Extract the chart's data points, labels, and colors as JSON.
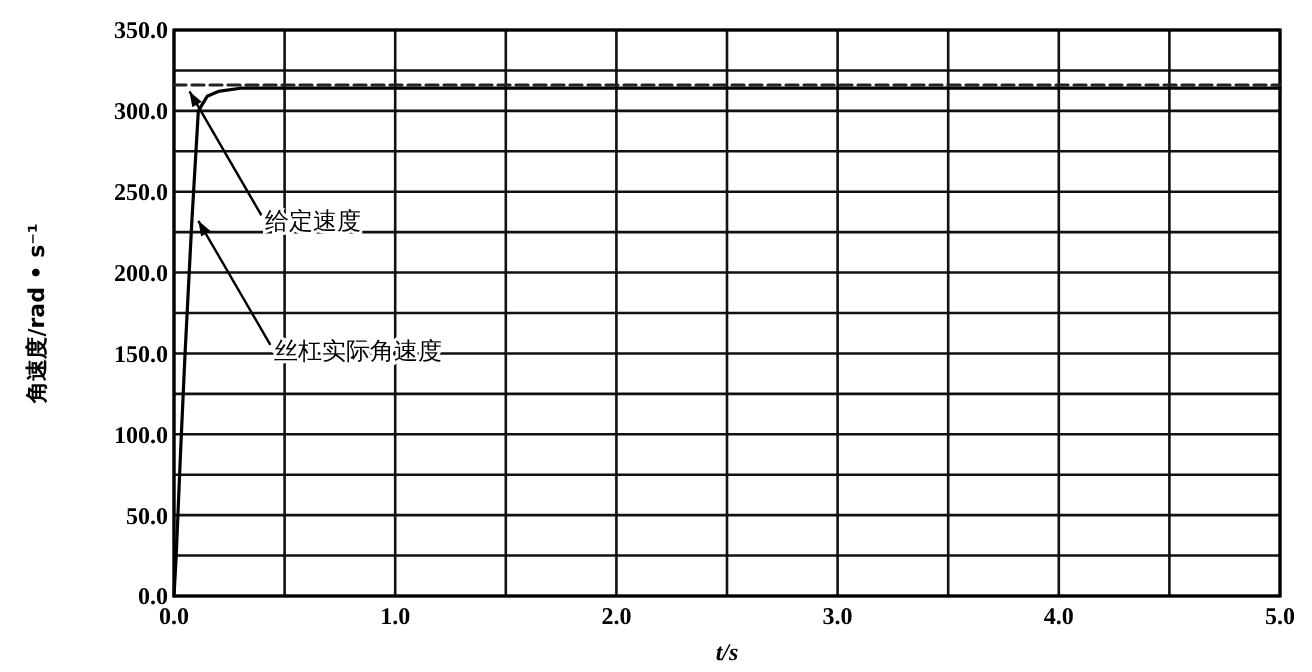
{
  "chart_data": {
    "type": "line",
    "xlabel": "t/s",
    "ylabel": "角速度/rad • s⁻¹",
    "xlim": [
      0,
      5
    ],
    "ylim": [
      0,
      350
    ],
    "xticks": [
      {
        "value": 0,
        "label": "0.0"
      },
      {
        "value": 0.5,
        "label": null
      },
      {
        "value": 1,
        "label": "1.0"
      },
      {
        "value": 1.5,
        "label": null
      },
      {
        "value": 2,
        "label": "2.0"
      },
      {
        "value": 2.5,
        "label": null
      },
      {
        "value": 3,
        "label": "3.0"
      },
      {
        "value": 3.5,
        "label": null
      },
      {
        "value": 4,
        "label": "4.0"
      },
      {
        "value": 4.5,
        "label": null
      },
      {
        "value": 5,
        "label": "5.0"
      }
    ],
    "yticks": [
      {
        "value": 0,
        "label": "0.0"
      },
      {
        "value": 25,
        "label": null
      },
      {
        "value": 50,
        "label": "50.0"
      },
      {
        "value": 75,
        "label": null
      },
      {
        "value": 100,
        "label": "100.0"
      },
      {
        "value": 125,
        "label": null
      },
      {
        "value": 150,
        "label": "150.0"
      },
      {
        "value": 175,
        "label": null
      },
      {
        "value": 200,
        "label": "200.0"
      },
      {
        "value": 225,
        "label": null
      },
      {
        "value": 250,
        "label": "250.0"
      },
      {
        "value": 275,
        "label": null
      },
      {
        "value": 300,
        "label": "300.0"
      },
      {
        "value": 325,
        "label": null
      },
      {
        "value": 350,
        "label": "350.0"
      }
    ],
    "grid": true,
    "marker": "none",
    "series": [
      {
        "color": "#000000",
        "line_style": "solid",
        "x": [
          0,
          0.01,
          0.03,
          0.05,
          0.08,
          0.11,
          0.15,
          0.2,
          0.3,
          0.5,
          1,
          2,
          3,
          4,
          5
        ],
        "values": [
          0,
          25,
          90,
          150,
          230,
          300,
          309,
          312,
          314,
          314,
          314,
          314,
          314,
          314,
          314
        ]
      },
      {
        "color": "#222222",
        "line_style": "dashed",
        "x": [
          0,
          0.5,
          1,
          2,
          3,
          4,
          5
        ],
        "values": [
          316,
          316,
          316,
          316,
          316,
          316,
          316
        ]
      }
    ],
    "annotations": [
      {
        "text": "给定速度",
        "x": 0.07,
        "y": 312
      },
      {
        "text": "丝杠实际角速度",
        "x": 0.11,
        "y": 232
      }
    ]
  }
}
